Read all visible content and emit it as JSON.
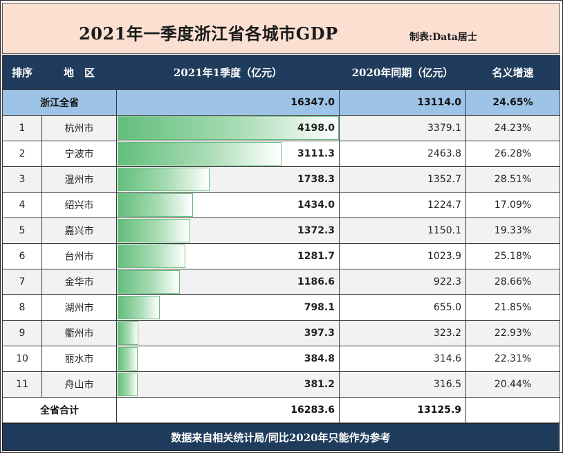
{
  "title": "2021年一季度浙江省各城市GDP",
  "credit": "制表:Data居士",
  "headers": {
    "rank": "排序",
    "region": "地　区",
    "q1_2021": "2021年1季度（亿元）",
    "q1_2020": "2020年同期（亿元）",
    "growth": "名义增速"
  },
  "province_row": {
    "name": "浙江全省",
    "q1_2021": "16347.0",
    "q1_2020": "13114.0",
    "growth": "24.65%"
  },
  "total_row": {
    "name": "全省合计",
    "q1_2021": "16283.6",
    "q1_2020": "13125.9"
  },
  "footer": "数据来自相关统计局/同比2020年只能作为参考",
  "colors": {
    "header_bg": "#1f3c5c",
    "title_bg": "#fbe0d2",
    "province_bg": "#9dc3e6",
    "databar": "#63be7b"
  },
  "chart_data": {
    "type": "table",
    "columns": [
      "排序",
      "地区",
      "2021年1季度（亿元）",
      "2020年同期（亿元）",
      "名义增速"
    ],
    "databar_column": "2021年1季度（亿元）",
    "databar_max": 4198.0,
    "rows": [
      {
        "rank": "1",
        "city": "杭州市",
        "q1_2021": "4198.0",
        "q1_2020": "3379.1",
        "growth": "24.23%"
      },
      {
        "rank": "2",
        "city": "宁波市",
        "q1_2021": "3111.3",
        "q1_2020": "2463.8",
        "growth": "26.28%"
      },
      {
        "rank": "3",
        "city": "温州市",
        "q1_2021": "1738.3",
        "q1_2020": "1352.7",
        "growth": "28.51%"
      },
      {
        "rank": "4",
        "city": "绍兴市",
        "q1_2021": "1434.0",
        "q1_2020": "1224.7",
        "growth": "17.09%"
      },
      {
        "rank": "5",
        "city": "嘉兴市",
        "q1_2021": "1372.3",
        "q1_2020": "1150.1",
        "growth": "19.33%"
      },
      {
        "rank": "6",
        "city": "台州市",
        "q1_2021": "1281.7",
        "q1_2020": "1023.9",
        "growth": "25.18%"
      },
      {
        "rank": "7",
        "city": "金华市",
        "q1_2021": "1186.6",
        "q1_2020": "922.3",
        "growth": "28.66%"
      },
      {
        "rank": "8",
        "city": "湖州市",
        "q1_2021": "798.1",
        "q1_2020": "655.0",
        "growth": "21.85%"
      },
      {
        "rank": "9",
        "city": "衢州市",
        "q1_2021": "397.3",
        "q1_2020": "323.2",
        "growth": "22.93%"
      },
      {
        "rank": "10",
        "city": "丽水市",
        "q1_2021": "384.8",
        "q1_2020": "314.6",
        "growth": "22.31%"
      },
      {
        "rank": "11",
        "city": "舟山市",
        "q1_2021": "381.2",
        "q1_2020": "316.5",
        "growth": "20.44%"
      }
    ]
  }
}
